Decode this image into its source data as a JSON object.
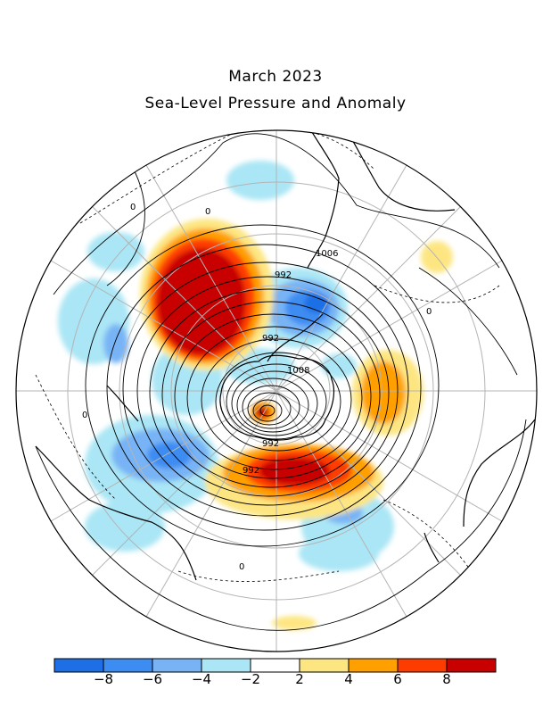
{
  "title": "March 2023",
  "subtitle": "Sea-Level Pressure and Anomaly",
  "contour_labels": [
    "1006",
    "992",
    "992",
    "1008",
    "992",
    "992",
    "0",
    "0",
    "0",
    "0",
    "0"
  ],
  "colorbar": {
    "colors": [
      "#1e6fe6",
      "#3c8cf2",
      "#78b4f5",
      "#aae6f5",
      "#ffffff",
      "#fde682",
      "#ffa000",
      "#ff3c00",
      "#c80000"
    ],
    "tick_labels": [
      "−8",
      "−6",
      "−4",
      "−2",
      "2",
      "4",
      "6",
      "8"
    ]
  },
  "colors": {
    "coast": "#000000",
    "grid": "#b4b4b4"
  }
}
